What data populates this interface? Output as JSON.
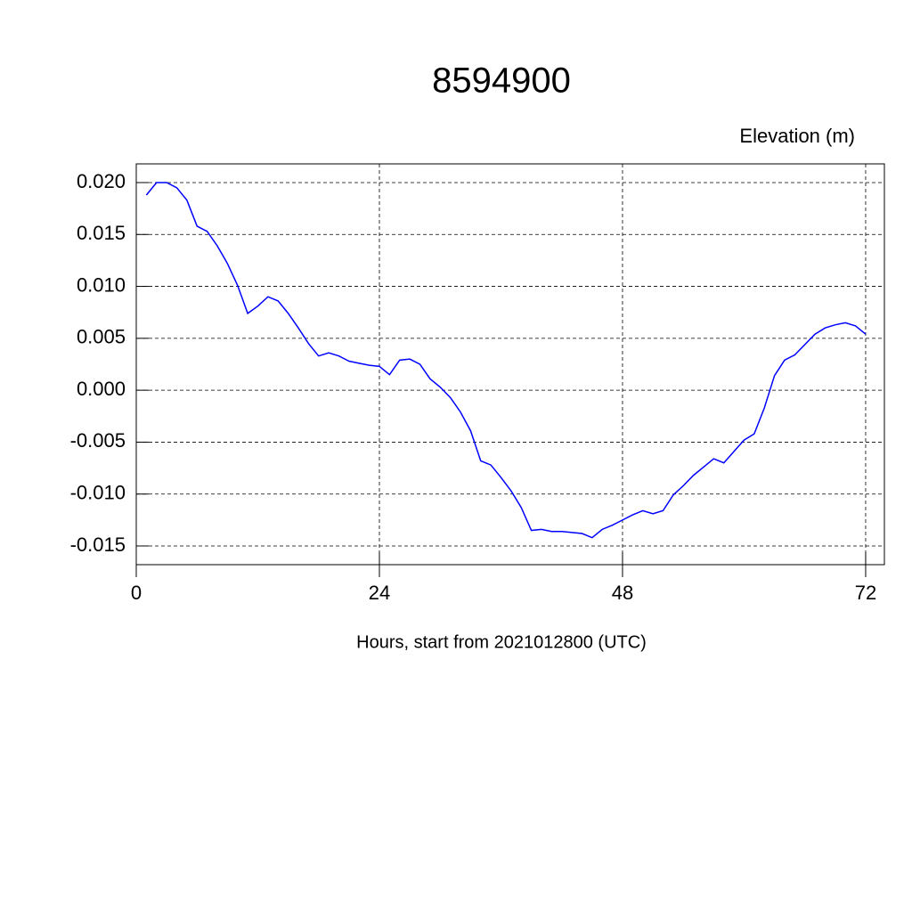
{
  "chart_data": {
    "type": "line",
    "title": "8594900",
    "subtitle": "Elevation (m)",
    "x_label": "Hours, start from 2021012800 (UTC)",
    "x": [
      1,
      2,
      3,
      4,
      5,
      6,
      7,
      8,
      9,
      10,
      11,
      12,
      13,
      14,
      15,
      16,
      17,
      18,
      19,
      20,
      21,
      22,
      23,
      24,
      25,
      26,
      27,
      28,
      29,
      30,
      31,
      32,
      33,
      34,
      35,
      36,
      37,
      38,
      39,
      40,
      41,
      42,
      43,
      44,
      45,
      46,
      47,
      48,
      49,
      50,
      51,
      52,
      53,
      54,
      55,
      56,
      57,
      58,
      59,
      60,
      61,
      62,
      63,
      64,
      65,
      66,
      67,
      68,
      69,
      70,
      71,
      72
    ],
    "series": [
      {
        "color": "#0000ff",
        "values": [
          0.0188,
          0.02,
          0.02,
          0.0195,
          0.0183,
          0.0158,
          0.0153,
          0.0139,
          0.0122,
          0.0101,
          0.0074,
          0.0081,
          0.009,
          0.0086,
          0.0074,
          0.006,
          0.0045,
          0.0033,
          0.0036,
          0.0033,
          0.0028,
          0.0026,
          0.0024,
          0.0023,
          0.0015,
          0.0029,
          0.003,
          0.0025,
          0.0011,
          0.0003,
          -0.0007,
          -0.0021,
          -0.0039,
          -0.0068,
          -0.0072,
          -0.0084,
          -0.0097,
          -0.0113,
          -0.0135,
          -0.0134,
          -0.0136,
          -0.0136,
          -0.0137,
          -0.0138,
          -0.0142,
          -0.0134,
          -0.013,
          -0.0125,
          -0.012,
          -0.0116,
          -0.0119,
          -0.0116,
          -0.0101,
          -0.0092,
          -0.0082,
          -0.0074,
          -0.0066,
          -0.007,
          -0.0059,
          -0.0048,
          -0.0042,
          -0.0017,
          0.0014,
          0.0029,
          0.0034,
          0.0044,
          0.0054,
          0.006,
          0.0063,
          0.0065,
          0.0062,
          0.0054
        ]
      }
    ],
    "xlim": [
      0,
      73.85
    ],
    "xticks": [
      0,
      24,
      48,
      72
    ],
    "ylim": [
      -0.0168,
      0.0218
    ],
    "yticks": [
      {
        "value": -0.015,
        "label": "-0.015"
      },
      {
        "value": -0.01,
        "label": "-0.010"
      },
      {
        "value": -0.005,
        "label": "-0.005"
      },
      {
        "value": 0,
        "label": "0.000"
      },
      {
        "value": 0.005,
        "label": "0.005"
      },
      {
        "value": 0.01,
        "label": "0.010"
      },
      {
        "value": 0.015,
        "label": "0.015"
      },
      {
        "value": 0.02,
        "label": "0.020"
      }
    ],
    "grid": true
  }
}
